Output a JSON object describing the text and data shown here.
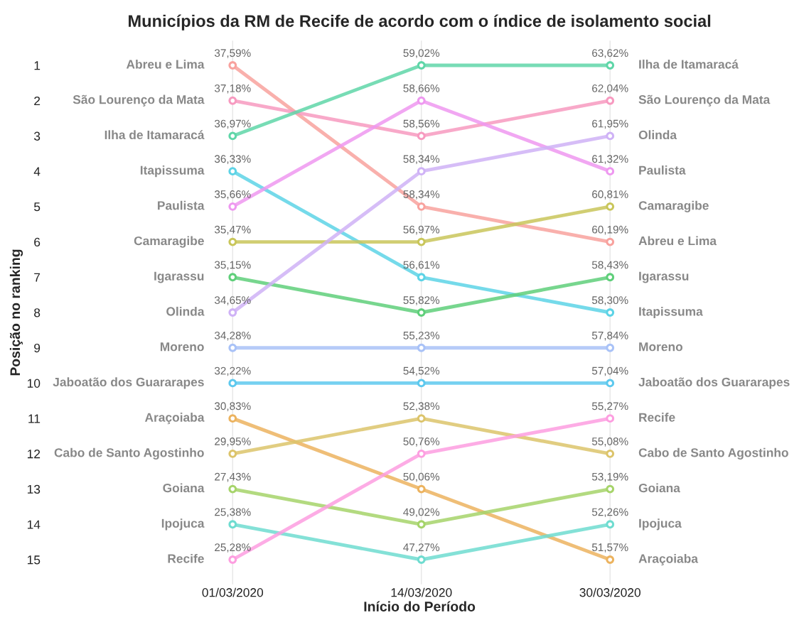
{
  "chart_data": {
    "type": "line",
    "title": "Municípios da RM de Recife de acordo com o índice de isolamento social",
    "xlabel": "Início do Período",
    "ylabel": "Posição no ranking",
    "categories": [
      "01/03/2020",
      "14/03/2020",
      "30/03/2020"
    ],
    "ylim": [
      15.7,
      0.3
    ],
    "yticks": [
      1,
      2,
      3,
      4,
      5,
      6,
      7,
      8,
      9,
      10,
      11,
      12,
      13,
      14,
      15
    ],
    "grid": "x",
    "legend": false,
    "marker": "circle",
    "line_style": "solid",
    "series": [
      {
        "name": "Abreu e Lima",
        "color": "#f8a29e",
        "values": [
          1,
          5,
          6
        ]
      },
      {
        "name": "São Lourenço da Mata",
        "color": "#f79ac0",
        "values": [
          2,
          3,
          2
        ]
      },
      {
        "name": "Ilha de Itamaracá",
        "color": "#5fd6a8",
        "values": [
          3,
          1,
          1
        ]
      },
      {
        "name": "Itapissuma",
        "color": "#5dd3e6",
        "values": [
          4,
          7,
          8
        ]
      },
      {
        "name": "Paulista",
        "color": "#ee98f0",
        "values": [
          5,
          2,
          4
        ]
      },
      {
        "name": "Camaragibe",
        "color": "#c9c65a",
        "values": [
          6,
          6,
          5
        ]
      },
      {
        "name": "Igarassu",
        "color": "#5fcf7a",
        "values": [
          7,
          8,
          7
        ]
      },
      {
        "name": "Olinda",
        "color": "#cfb2f6",
        "values": [
          8,
          4,
          3
        ]
      },
      {
        "name": "Moreno",
        "color": "#a9c2f7",
        "values": [
          9,
          9,
          9
        ]
      },
      {
        "name": "Jaboatão dos Guararapes",
        "color": "#5ec9ee",
        "values": [
          10,
          10,
          10
        ]
      },
      {
        "name": "Araçoiaba",
        "color": "#ecb35f",
        "values": [
          11,
          13,
          15
        ]
      },
      {
        "name": "Cabo de Santo Agostinho",
        "color": "#dcc46b",
        "values": [
          12,
          11,
          12
        ]
      },
      {
        "name": "Goiana",
        "color": "#a6d46a",
        "values": [
          13,
          14,
          13
        ]
      },
      {
        "name": "Ipojuca",
        "color": "#6fdcd0",
        "values": [
          14,
          15,
          14
        ]
      },
      {
        "name": "Recife",
        "color": "#fd9ee0",
        "values": [
          15,
          12,
          11
        ]
      }
    ],
    "annotations": [
      {
        "text": "37,59%",
        "x": "01/03/2020",
        "y": 1
      },
      {
        "text": "37,18%",
        "x": "01/03/2020",
        "y": 2
      },
      {
        "text": "36,97%",
        "x": "01/03/2020",
        "y": 3
      },
      {
        "text": "36,33%",
        "x": "01/03/2020",
        "y": 4
      },
      {
        "text": "35,66%",
        "x": "01/03/2020",
        "y": 5
      },
      {
        "text": "35,47%",
        "x": "01/03/2020",
        "y": 6
      },
      {
        "text": "35,15%",
        "x": "01/03/2020",
        "y": 7
      },
      {
        "text": "34,65%",
        "x": "01/03/2020",
        "y": 8
      },
      {
        "text": "34,28%",
        "x": "01/03/2020",
        "y": 9
      },
      {
        "text": "32,22%",
        "x": "01/03/2020",
        "y": 10
      },
      {
        "text": "30,83%",
        "x": "01/03/2020",
        "y": 11
      },
      {
        "text": "29,95%",
        "x": "01/03/2020",
        "y": 12
      },
      {
        "text": "27,43%",
        "x": "01/03/2020",
        "y": 13
      },
      {
        "text": "25,38%",
        "x": "01/03/2020",
        "y": 14
      },
      {
        "text": "25,28%",
        "x": "01/03/2020",
        "y": 15
      },
      {
        "text": "59,02%",
        "x": "14/03/2020",
        "y": 1
      },
      {
        "text": "58,66%",
        "x": "14/03/2020",
        "y": 2
      },
      {
        "text": "58,56%",
        "x": "14/03/2020",
        "y": 3
      },
      {
        "text": "58,34%",
        "x": "14/03/2020",
        "y": 4
      },
      {
        "text": "58,34%",
        "x": "14/03/2020",
        "y": 5
      },
      {
        "text": "56,97%",
        "x": "14/03/2020",
        "y": 6
      },
      {
        "text": "56,61%",
        "x": "14/03/2020",
        "y": 7
      },
      {
        "text": "55,82%",
        "x": "14/03/2020",
        "y": 8
      },
      {
        "text": "55,23%",
        "x": "14/03/2020",
        "y": 9
      },
      {
        "text": "54,52%",
        "x": "14/03/2020",
        "y": 10
      },
      {
        "text": "52,38%",
        "x": "14/03/2020",
        "y": 11
      },
      {
        "text": "50,76%",
        "x": "14/03/2020",
        "y": 12
      },
      {
        "text": "50,06%",
        "x": "14/03/2020",
        "y": 13
      },
      {
        "text": "49,02%",
        "x": "14/03/2020",
        "y": 14
      },
      {
        "text": "47,27%",
        "x": "14/03/2020",
        "y": 15
      },
      {
        "text": "63,62%",
        "x": "30/03/2020",
        "y": 1
      },
      {
        "text": "62,04%",
        "x": "30/03/2020",
        "y": 2
      },
      {
        "text": "61,95%",
        "x": "30/03/2020",
        "y": 3
      },
      {
        "text": "61,32%",
        "x": "30/03/2020",
        "y": 4
      },
      {
        "text": "60,81%",
        "x": "30/03/2020",
        "y": 5
      },
      {
        "text": "60,19%",
        "x": "30/03/2020",
        "y": 6
      },
      {
        "text": "58,43%",
        "x": "30/03/2020",
        "y": 7
      },
      {
        "text": "58,30%",
        "x": "30/03/2020",
        "y": 8
      },
      {
        "text": "57,84%",
        "x": "30/03/2020",
        "y": 9
      },
      {
        "text": "57,04%",
        "x": "30/03/2020",
        "y": 10
      },
      {
        "text": "55,27%",
        "x": "30/03/2020",
        "y": 11
      },
      {
        "text": "55,08%",
        "x": "30/03/2020",
        "y": 12
      },
      {
        "text": "53,19%",
        "x": "30/03/2020",
        "y": 13
      },
      {
        "text": "52,26%",
        "x": "30/03/2020",
        "y": 14
      },
      {
        "text": "51,57%",
        "x": "30/03/2020",
        "y": 15
      }
    ]
  }
}
